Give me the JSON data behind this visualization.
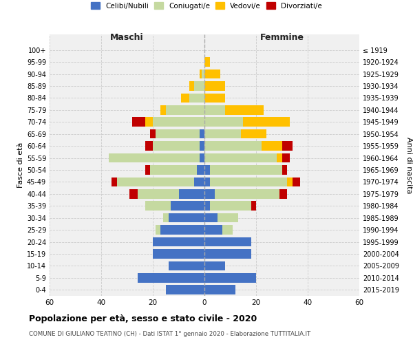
{
  "age_groups": [
    "0-4",
    "5-9",
    "10-14",
    "15-19",
    "20-24",
    "25-29",
    "30-34",
    "35-39",
    "40-44",
    "45-49",
    "50-54",
    "55-59",
    "60-64",
    "65-69",
    "70-74",
    "75-79",
    "80-84",
    "85-89",
    "90-94",
    "95-99",
    "100+"
  ],
  "birth_years": [
    "2015-2019",
    "2010-2014",
    "2005-2009",
    "2000-2004",
    "1995-1999",
    "1990-1994",
    "1985-1989",
    "1980-1984",
    "1975-1979",
    "1970-1974",
    "1965-1969",
    "1960-1964",
    "1955-1959",
    "1950-1954",
    "1945-1949",
    "1940-1944",
    "1935-1939",
    "1930-1934",
    "1925-1929",
    "1920-1924",
    "≤ 1919"
  ],
  "males": {
    "celibi": [
      15,
      26,
      14,
      20,
      20,
      17,
      14,
      13,
      10,
      4,
      3,
      2,
      2,
      2,
      0,
      0,
      0,
      0,
      0,
      0,
      0
    ],
    "coniugati": [
      0,
      0,
      0,
      0,
      0,
      2,
      2,
      10,
      16,
      30,
      18,
      35,
      18,
      17,
      20,
      15,
      6,
      4,
      1,
      0,
      0
    ],
    "vedovi": [
      0,
      0,
      0,
      0,
      0,
      0,
      0,
      0,
      0,
      0,
      0,
      0,
      0,
      0,
      3,
      2,
      3,
      2,
      1,
      0,
      0
    ],
    "divorziati": [
      0,
      0,
      0,
      0,
      0,
      0,
      0,
      0,
      3,
      2,
      2,
      0,
      3,
      2,
      5,
      0,
      0,
      0,
      0,
      0,
      0
    ]
  },
  "females": {
    "nubili": [
      12,
      20,
      8,
      18,
      18,
      7,
      5,
      2,
      4,
      2,
      2,
      0,
      0,
      0,
      0,
      0,
      0,
      0,
      0,
      0,
      0
    ],
    "coniugate": [
      0,
      0,
      0,
      0,
      0,
      4,
      8,
      16,
      25,
      30,
      28,
      28,
      22,
      14,
      15,
      8,
      0,
      0,
      0,
      0,
      0
    ],
    "vedove": [
      0,
      0,
      0,
      0,
      0,
      0,
      0,
      0,
      0,
      2,
      0,
      2,
      8,
      10,
      18,
      15,
      8,
      8,
      6,
      2,
      0
    ],
    "divorziate": [
      0,
      0,
      0,
      0,
      0,
      0,
      0,
      2,
      3,
      3,
      2,
      3,
      4,
      0,
      0,
      0,
      0,
      0,
      0,
      0,
      0
    ]
  },
  "color_celibi": "#4472c4",
  "color_coniugati": "#c5d9a0",
  "color_vedovi": "#ffc000",
  "color_divorziati": "#c00000",
  "xlim": 60,
  "title": "Popolazione per età, sesso e stato civile - 2020",
  "subtitle": "COMUNE DI GIULIANO TEATINO (CH) - Dati ISTAT 1° gennaio 2020 - Elaborazione TUTTITALIA.IT",
  "ylabel_left": "Fasce di età",
  "ylabel_right": "Anni di nascita",
  "xlabel_left": "Maschi",
  "xlabel_right": "Femmine",
  "bg_color": "#f0f0f0",
  "grid_color": "#cccccc",
  "legend_labels": [
    "Celibi/Nubili",
    "Coniugati/e",
    "Vedovi/e",
    "Divorziati/e"
  ]
}
